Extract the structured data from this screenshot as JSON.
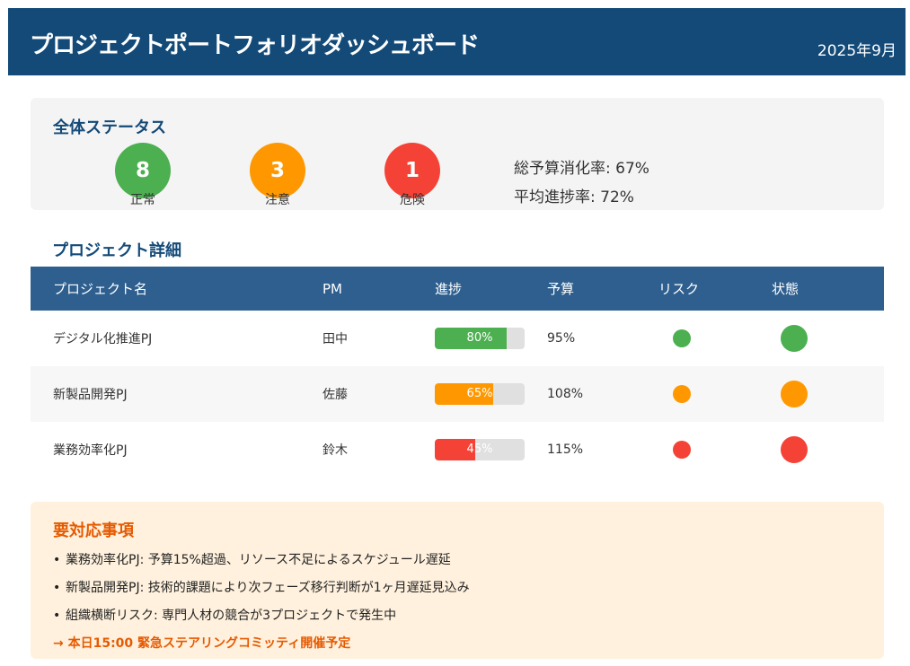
{
  "header": {
    "title": "プロジェクトポートフォリオダッシュボード",
    "date": "2025年9月"
  },
  "overall": {
    "title": "全体ステータス",
    "statuses": [
      {
        "count": "8",
        "label": "正常",
        "color": "#4caf50"
      },
      {
        "count": "3",
        "label": "注意",
        "color": "#ff9800"
      },
      {
        "count": "1",
        "label": "危険",
        "color": "#f44336"
      }
    ],
    "budget_rate": "総予算消化率: 67%",
    "avg_progress": "平均進捗率: 72%"
  },
  "details": {
    "title": "プロジェクト詳細",
    "columns": [
      "プロジェクト名",
      "PM",
      "進捗",
      "予算",
      "リスク",
      "状態"
    ],
    "rows": [
      {
        "name": "デジタル化推進PJ",
        "pm": "田中",
        "progress": 80,
        "progress_label": "80%",
        "budget": "95%",
        "color": "#4caf50"
      },
      {
        "name": "新製品開発PJ",
        "pm": "佐藤",
        "progress": 65,
        "progress_label": "65%",
        "budget": "108%",
        "color": "#ff9800"
      },
      {
        "name": "業務効率化PJ",
        "pm": "鈴木",
        "progress": 45,
        "progress_label": "45%",
        "budget": "115%",
        "color": "#f44336"
      }
    ]
  },
  "actions": {
    "title": "要対応事項",
    "bullet": "•",
    "items": [
      "業務効率化PJ: 予算15%超過、リソース不足によるスケジュール遅延",
      "新製品開発PJ: 技術的課題により次フェーズ移行判断が1ヶ月遅延見込み",
      "組織横断リスク: 専門人材の競合が3プロジェクトで発生中"
    ],
    "cta": "→ 本日15:00 緊急ステアリングコミッティ開催予定"
  }
}
